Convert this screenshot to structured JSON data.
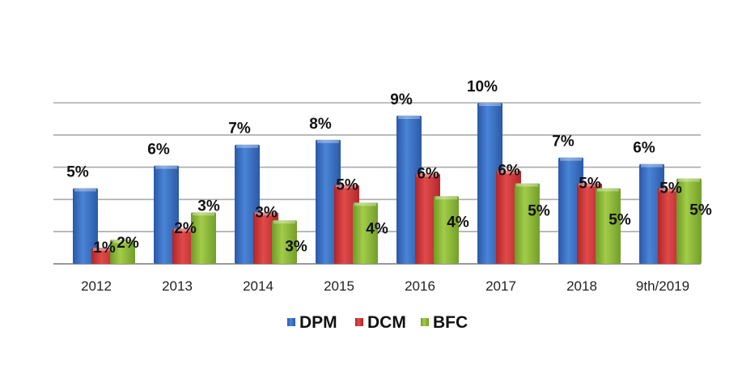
{
  "chart_data": {
    "type": "bar",
    "title": "",
    "xlabel": "",
    "ylabel": "",
    "ylim": [
      0,
      10
    ],
    "grid": true,
    "legend_position": "bottom",
    "categories": [
      "2012",
      "2013",
      "2014",
      "2015",
      "2016",
      "2017",
      "2018",
      "9th/2019"
    ],
    "series": [
      {
        "name": "DPM",
        "color": "#3a6fc4",
        "values": [
          4.7,
          6.1,
          7.4,
          7.7,
          9.2,
          10.0,
          6.6,
          6.2
        ],
        "labels": [
          "5%",
          "6%",
          "7%",
          "8%",
          "9%",
          "10%",
          "7%",
          "6%"
        ]
      },
      {
        "name": "DCM",
        "color": "#d0373a",
        "values": [
          1.0,
          2.2,
          3.2,
          4.9,
          5.6,
          5.8,
          5.0,
          4.7
        ],
        "labels": [
          "1%",
          "2%",
          "3%",
          "5%",
          "6%",
          "6%",
          "5%",
          "5%"
        ]
      },
      {
        "name": "BFC",
        "color": "#8fba3a",
        "values": [
          1.5,
          3.2,
          2.7,
          3.8,
          4.2,
          5.0,
          4.7,
          5.3
        ],
        "labels": [
          "2%",
          "3%",
          "3%",
          "4%",
          "4%",
          "5%",
          "5%",
          "5%"
        ]
      }
    ]
  }
}
